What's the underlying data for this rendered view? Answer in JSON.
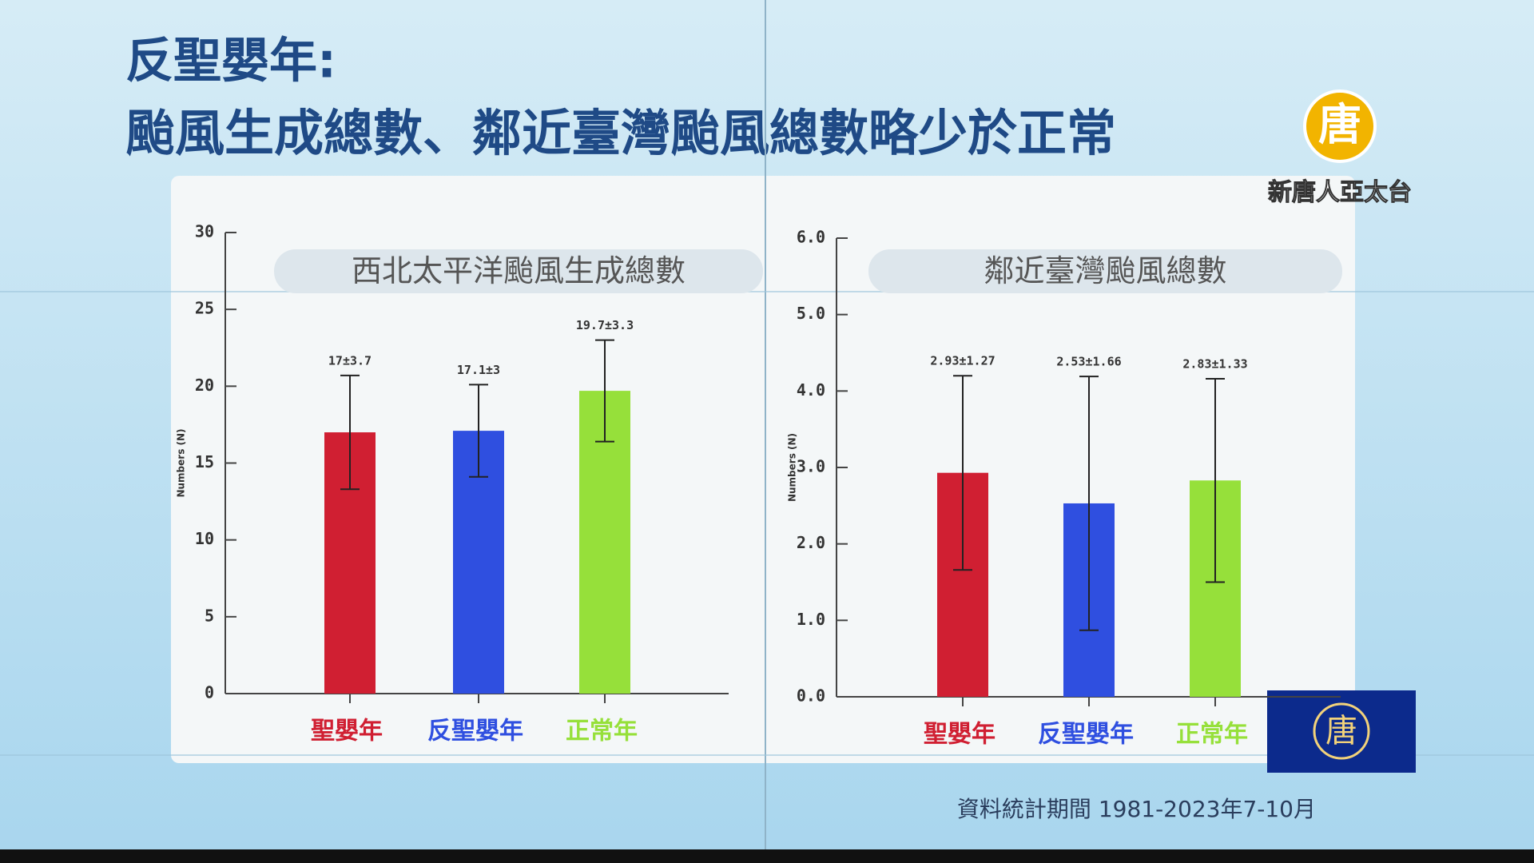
{
  "header": {
    "title_line1": "反聖嬰年:",
    "title_line2": "颱風生成總數、鄰近臺灣颱風總數略少於正常"
  },
  "chart_data": [
    {
      "type": "bar",
      "title": "西北太平洋颱風生成總數",
      "y_label": "Numbers (N)",
      "categories": [
        "聖嬰年",
        "反聖嬰年",
        "正常年"
      ],
      "values": [
        17,
        17.1,
        19.7
      ],
      "errors": [
        3.7,
        3,
        3.3
      ],
      "value_labels": [
        "17±3.7",
        "17.1±3",
        "19.7±3.3"
      ],
      "colors": [
        "#d01f32",
        "#2f4fe0",
        "#96e03a"
      ],
      "ylim": [
        0,
        30
      ],
      "yticks": [
        0,
        5,
        10,
        15,
        20,
        25,
        30
      ]
    },
    {
      "type": "bar",
      "title": "鄰近臺灣颱風總數",
      "y_label": "Numbers (N)",
      "categories": [
        "聖嬰年",
        "反聖嬰年",
        "正常年"
      ],
      "values": [
        2.93,
        2.53,
        2.83
      ],
      "errors": [
        1.27,
        1.66,
        1.33
      ],
      "value_labels": [
        "2.93±1.27",
        "2.53±1.66",
        "2.83±1.33"
      ],
      "colors": [
        "#d01f32",
        "#2f4fe0",
        "#96e03a"
      ],
      "ylim": [
        0,
        6
      ],
      "yticks": [
        {
          "value": 0,
          "label": "0.0"
        },
        {
          "value": 1,
          "label": "1.0"
        },
        {
          "value": 2,
          "label": "2.0"
        },
        {
          "value": 3,
          "label": "3.0"
        },
        {
          "value": 4,
          "label": "4.0"
        },
        {
          "value": 5,
          "label": "5.0"
        },
        {
          "value": 6,
          "label": "6.0"
        }
      ]
    }
  ],
  "footnote": "資料統計期間 1981-2023年7-10月",
  "logo": {
    "glyph": "唐",
    "name": "新唐人亞太台"
  }
}
